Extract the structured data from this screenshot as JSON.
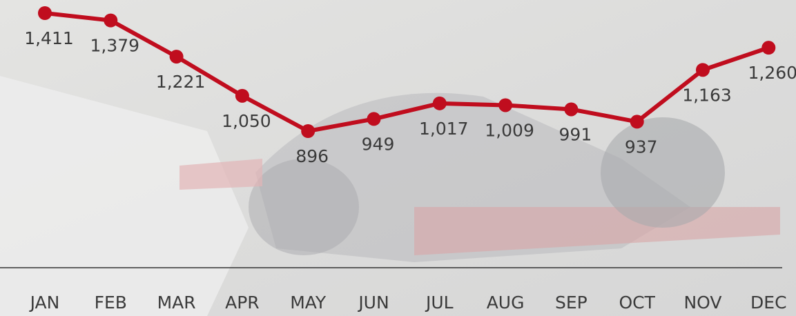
{
  "chart_data": {
    "type": "line",
    "categories": [
      "JAN",
      "FEB",
      "MAR",
      "APR",
      "MAY",
      "JUN",
      "JUL",
      "AUG",
      "SEP",
      "OCT",
      "NOV",
      "DEC"
    ],
    "series": [
      {
        "color": "#c00d1e",
        "values": [
          1411,
          1379,
          1221,
          1050,
          896,
          949,
          1017,
          1009,
          991,
          937,
          1163,
          1260
        ],
        "value_labels": [
          "1,411",
          "1,379",
          "1,221",
          "1,050",
          "896",
          "949",
          "1,017",
          "1,009",
          "991",
          "937",
          "1,163",
          "1,260"
        ]
      }
    ]
  }
}
